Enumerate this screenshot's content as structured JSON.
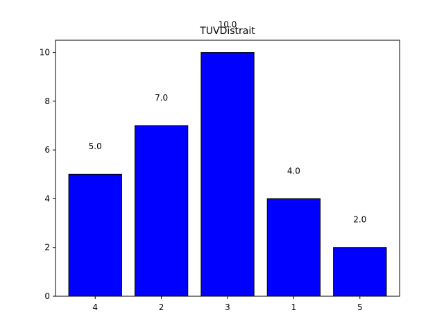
{
  "chart_data": {
    "type": "bar",
    "title": "TUVDistrait",
    "xlabel": "",
    "ylabel": "",
    "categories": [
      "4",
      "2",
      "3",
      "1",
      "5"
    ],
    "values": [
      5.0,
      7.0,
      10.0,
      4.0,
      2.0
    ],
    "data_labels": [
      "5.0",
      "7.0",
      "10.0",
      "4.0",
      "2.0"
    ],
    "ylim": [
      0,
      10
    ],
    "yticks": [
      "0",
      "2",
      "4",
      "6",
      "8",
      "10"
    ],
    "grid": false,
    "legend": "none",
    "bar_color": "#0000ff",
    "edge_color": "#000000"
  }
}
